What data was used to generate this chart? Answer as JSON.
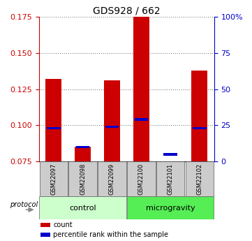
{
  "title": "GDS928 / 662",
  "samples": [
    "GSM22097",
    "GSM22098",
    "GSM22099",
    "GSM22100",
    "GSM22101",
    "GSM22102"
  ],
  "count_values": [
    0.132,
    0.085,
    0.131,
    0.175,
    0.075,
    0.138
  ],
  "percentile_values": [
    0.098,
    0.085,
    0.099,
    0.104,
    0.08,
    0.098
  ],
  "ylim_left": [
    0.075,
    0.175
  ],
  "yticks_left": [
    0.075,
    0.1,
    0.125,
    0.15,
    0.175
  ],
  "yticks_right": [
    0,
    25,
    50,
    75,
    100
  ],
  "ylim_right": [
    0,
    100
  ],
  "bar_bottom": 0.075,
  "groups": [
    {
      "label": "control",
      "samples": [
        0,
        1,
        2
      ],
      "color": "#ccffcc"
    },
    {
      "label": "microgravity",
      "samples": [
        3,
        4,
        5
      ],
      "color": "#55ee55"
    }
  ],
  "protocol_label": "protocol",
  "bar_color_red": "#cc0000",
  "bar_color_blue": "#0000cc",
  "tick_color_left": "#cc0000",
  "tick_color_right": "#0000cc",
  "background_color": "#ffffff",
  "xlabel_area_color": "#cccccc",
  "bar_width": 0.55,
  "legend_items": [
    {
      "color": "#cc0000",
      "label": "count"
    },
    {
      "color": "#0000cc",
      "label": "percentile rank within the sample"
    }
  ]
}
